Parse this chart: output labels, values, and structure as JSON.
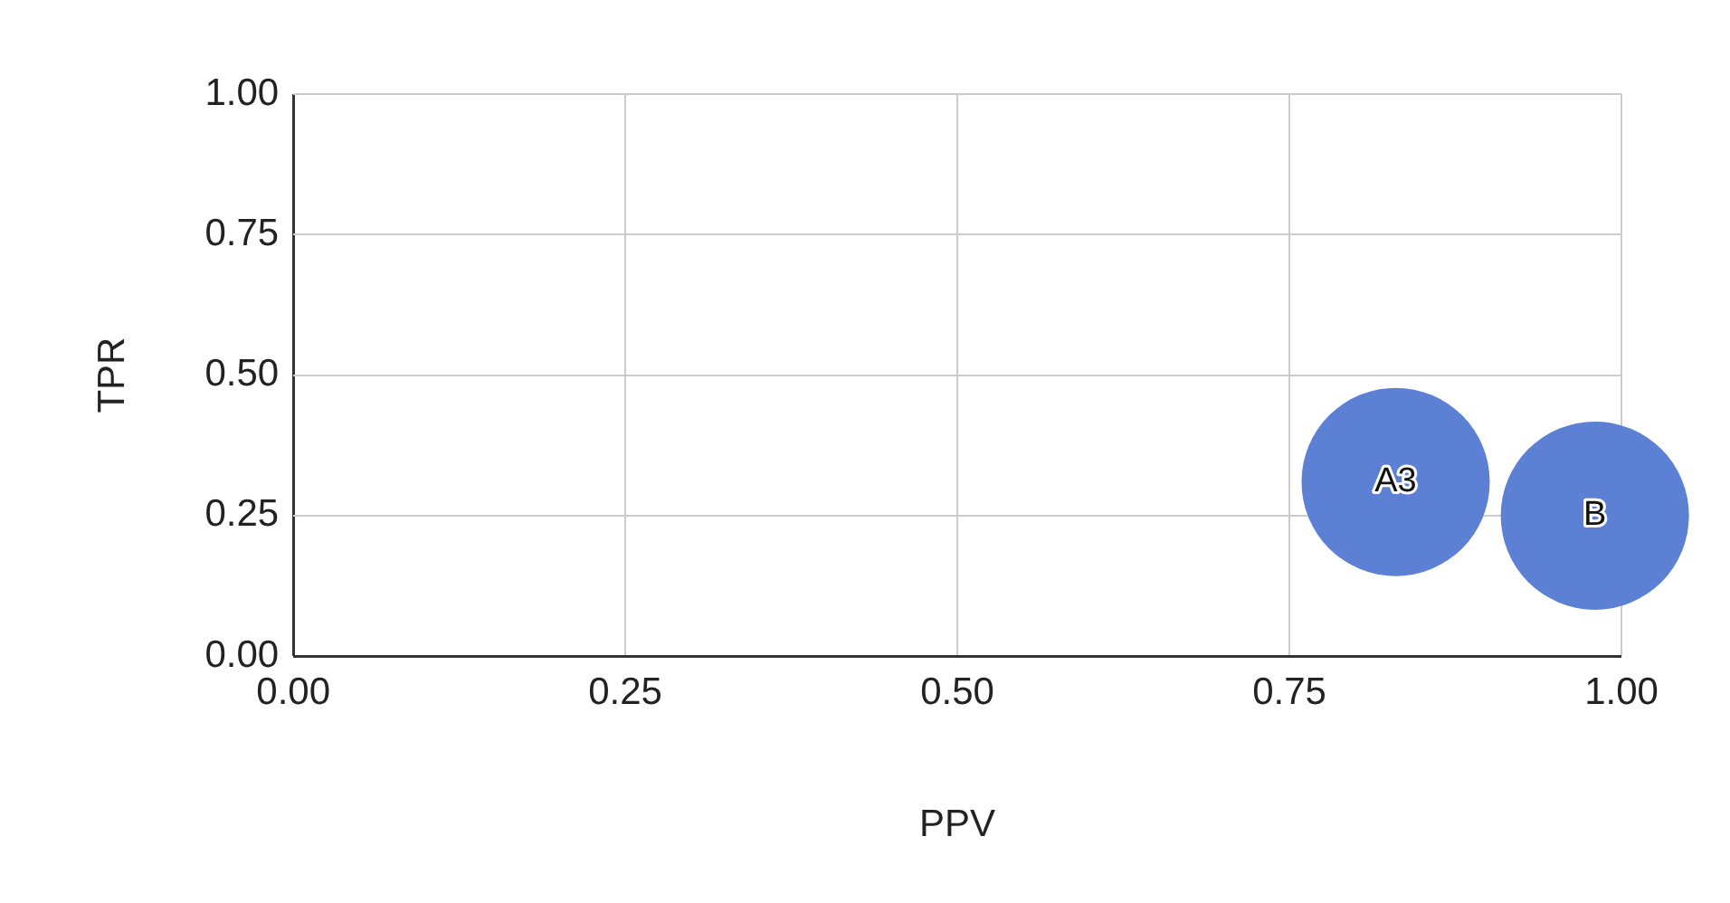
{
  "chart_data": {
    "type": "bubble",
    "xlabel": "PPV",
    "ylabel": "TPR",
    "series": [
      {
        "name": "A3",
        "color": "#5b80d4",
        "x": [
          0.83
        ],
        "values": [
          0.31
        ],
        "sizes": [
          1
        ]
      },
      {
        "name": "B",
        "color": "#5b80d4",
        "x": [
          0.98
        ],
        "values": [
          0.25
        ],
        "sizes": [
          1
        ]
      }
    ],
    "xlim": [
      0,
      1
    ],
    "xticks": [
      {
        "value": 0,
        "label": "0.00"
      },
      {
        "value": 0.25,
        "label": "0.25"
      },
      {
        "value": 0.5,
        "label": "0.50"
      },
      {
        "value": 0.75,
        "label": "0.75"
      },
      {
        "value": 1,
        "label": "1.00"
      }
    ],
    "ylim": [
      0,
      1
    ],
    "yticks": [
      {
        "value": 0,
        "label": "0.00"
      },
      {
        "value": 0.25,
        "label": "0.25"
      },
      {
        "value": 0.5,
        "label": "0.50"
      },
      {
        "value": 0.75,
        "label": "0.75"
      },
      {
        "value": 1,
        "label": "1.00"
      }
    ],
    "grid": true,
    "legend": false
  }
}
